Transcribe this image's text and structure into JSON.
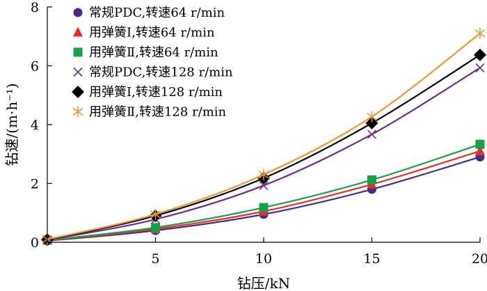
{
  "chart_data": {
    "type": "line",
    "xlabel": "钻压/kN",
    "ylabel": "钻速/(m·h⁻¹)",
    "xlim": [
      0,
      20
    ],
    "ylim": [
      0,
      8
    ],
    "x_ticks": [
      5,
      10,
      15,
      20
    ],
    "y_ticks": [
      0,
      2,
      4,
      6,
      8
    ],
    "grid": false,
    "legend_position": "top-left",
    "x": [
      0,
      5,
      10,
      15,
      20
    ],
    "series": [
      {
        "name": "常规PDC,转速64 r/min",
        "marker": "circle",
        "color": "#4b2a8c",
        "values": [
          0.05,
          0.4,
          0.95,
          1.8,
          2.9
        ]
      },
      {
        "name": "用弹簧Ⅰ,转速64 r/min",
        "marker": "triangle",
        "color": "#e5302a",
        "values": [
          0.06,
          0.45,
          1.05,
          1.97,
          3.1
        ]
      },
      {
        "name": "用弹簧Ⅱ,转速64 r/min",
        "marker": "square",
        "color": "#17a047",
        "values": [
          0.07,
          0.5,
          1.18,
          2.12,
          3.33
        ]
      },
      {
        "name": "常规PDC,转速128 r/min",
        "marker": "x",
        "color": "#6a2d8f",
        "values": [
          0.08,
          0.78,
          1.93,
          3.67,
          5.93
        ]
      },
      {
        "name": "用弹簧Ⅰ,转速128 r/min",
        "marker": "diamond",
        "color": "#000000",
        "values": [
          0.09,
          0.9,
          2.18,
          4.05,
          6.37
        ]
      },
      {
        "name": "用弹簧Ⅱ,转速128 r/min",
        "marker": "asterisk",
        "color": "#f0962b",
        "values": [
          0.1,
          0.95,
          2.3,
          4.27,
          7.1
        ]
      }
    ]
  }
}
